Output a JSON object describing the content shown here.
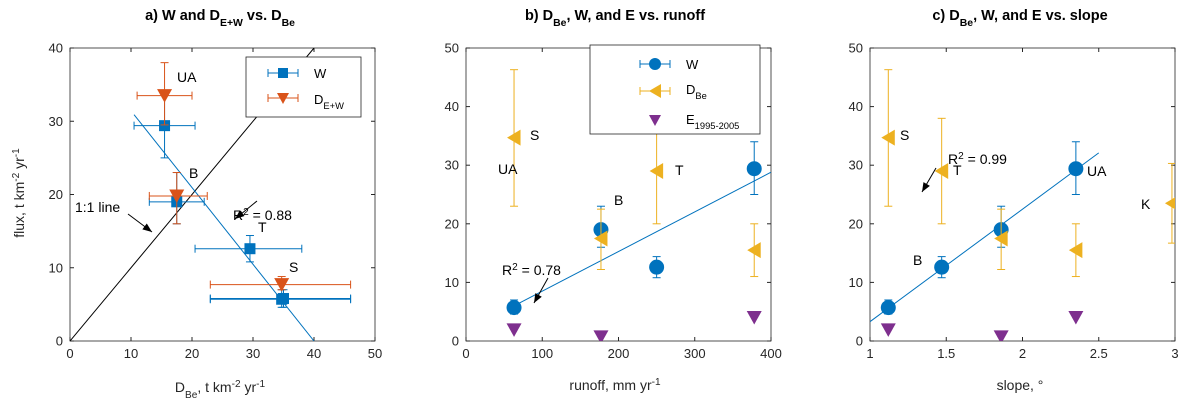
{
  "colors": {
    "W": "#0072bd",
    "D": "#edb120",
    "E": "#7e2f8e",
    "DEW": "#d95319"
  },
  "panels": [
    {
      "title": "a) W and D{E+W} vs. D{Be}",
      "xlabel": "D{Be}, t km^-2^ yr^-1^",
      "ylabel": "flux, t km^-2^ yr^-1^",
      "xticks": [
        "0",
        "10",
        "20",
        "30",
        "40",
        "50"
      ],
      "yticks": [
        "0",
        "10",
        "20",
        "30",
        "40"
      ],
      "legend": [
        "W",
        "D{E+W}"
      ],
      "annotations": [
        "UA",
        "B",
        "T",
        "S",
        "1:1 line",
        "R^2^ = 0.88"
      ]
    },
    {
      "title": "b)  D{Be}, W, and E vs. runoff",
      "xlabel": "runoff, mm yr^-1^",
      "ylabel": "",
      "xticks": [
        "0",
        "100",
        "200",
        "300",
        "400"
      ],
      "yticks": [
        "0",
        "10",
        "20",
        "30",
        "40",
        "50"
      ],
      "legend": [
        "W",
        "D{Be}",
        "E{1995-2005}"
      ],
      "annotations": [
        "S",
        "B",
        "T",
        "UA",
        "R^2^ = 0.78"
      ]
    },
    {
      "title": "c) D{Be}, W, and E vs. slope",
      "xlabel": "slope, °",
      "ylabel": "",
      "xticks": [
        "1",
        "1.5",
        "2",
        "2.5",
        "3"
      ],
      "yticks": [
        "0",
        "10",
        "20",
        "30",
        "40",
        "50"
      ],
      "legend": [],
      "annotations": [
        "S",
        "T",
        "B",
        "UA",
        "K",
        "R^2^ = 0.99"
      ]
    }
  ],
  "chart_data": [
    {
      "type": "scatter",
      "xlim": [
        0,
        50
      ],
      "ylim": [
        0,
        40
      ],
      "series": [
        {
          "name": "W",
          "x": [
            15.5,
            17.5,
            29.5,
            35,
            34.7
          ],
          "y": [
            29.4,
            19,
            12.6,
            5.8,
            5.7
          ],
          "xerr": [
            [
              10.5,
              20.5
            ],
            [
              13,
              22
            ],
            [
              20.5,
              38
            ],
            [
              23,
              46
            ],
            [
              23,
              46
            ]
          ],
          "yerr": [
            [
              25,
              33.6
            ],
            [
              16,
              23
            ],
            [
              10.8,
              14.4
            ],
            [
              4.6,
              7
            ],
            [
              4.6,
              7
            ]
          ],
          "marker": "square"
        },
        {
          "name": "D{E+W}",
          "x": [
            15.5,
            17.5,
            34.7
          ],
          "y": [
            33.5,
            19.8,
            7.7
          ],
          "xerr": [
            [
              11,
              20
            ],
            [
              13,
              22.5
            ],
            [
              23,
              46
            ]
          ],
          "yerr": [
            [
              29.5,
              38
            ],
            [
              16,
              23
            ],
            [
              7,
              8.8
            ]
          ],
          "marker": "triangle-down"
        }
      ],
      "fit": {
        "x": [
          10.5,
          40
        ],
        "y": [
          30.9,
          0
        ]
      },
      "reference_line": {
        "x": [
          0,
          40
        ],
        "y": [
          0,
          40
        ]
      }
    },
    {
      "type": "scatter",
      "xlim": [
        0,
        400
      ],
      "ylim": [
        0,
        50
      ],
      "series": [
        {
          "name": "W",
          "x": [
            63,
            177,
            250,
            378
          ],
          "y": [
            5.7,
            19,
            12.6,
            29.4
          ],
          "yerr": [
            [
              4.6,
              7
            ],
            [
              16,
              23
            ],
            [
              10.8,
              14.4
            ],
            [
              25,
              34
            ]
          ],
          "marker": "circle"
        },
        {
          "name": "D{Be}",
          "x": [
            63,
            177,
            250,
            378
          ],
          "y": [
            34.7,
            17.5,
            29,
            15.5
          ],
          "yerr": [
            [
              23,
              46.3
            ],
            [
              12.2,
              22.5
            ],
            [
              20,
              38
            ],
            [
              11,
              20
            ]
          ],
          "marker": "triangle-left"
        },
        {
          "name": "E{1995-2005}",
          "x": [
            63,
            177,
            378
          ],
          "y": [
            1.9,
            0.7,
            4
          ],
          "marker": "triangle-down"
        }
      ],
      "fit": {
        "x": [
          63,
          400
        ],
        "y": [
          6,
          28.8
        ]
      }
    },
    {
      "type": "scatter",
      "xlim": [
        1,
        3
      ],
      "ylim": [
        0,
        50
      ],
      "series": [
        {
          "name": "W",
          "x": [
            1.12,
            1.47,
            1.86,
            2.35
          ],
          "y": [
            5.7,
            12.6,
            19,
            29.4
          ],
          "yerr": [
            [
              4.6,
              7
            ],
            [
              10.8,
              14.4
            ],
            [
              16,
              23
            ],
            [
              25,
              34
            ]
          ],
          "marker": "circle"
        },
        {
          "name": "D{Be}",
          "x": [
            1.12,
            1.47,
            1.86,
            2.35,
            2.98
          ],
          "y": [
            34.7,
            29,
            17.5,
            15.5,
            23.5
          ],
          "yerr": [
            [
              23,
              46.3
            ],
            [
              20,
              38
            ],
            [
              12.2,
              22.5
            ],
            [
              11,
              20
            ],
            [
              16.7,
              30.3
            ]
          ],
          "marker": "triangle-left"
        },
        {
          "name": "E{1995-2005}",
          "x": [
            1.12,
            1.86,
            2.35
          ],
          "y": [
            1.9,
            0.7,
            4
          ],
          "marker": "triangle-down"
        }
      ],
      "fit": {
        "x": [
          1,
          2.5
        ],
        "y": [
          3.3,
          32.1
        ]
      }
    }
  ]
}
